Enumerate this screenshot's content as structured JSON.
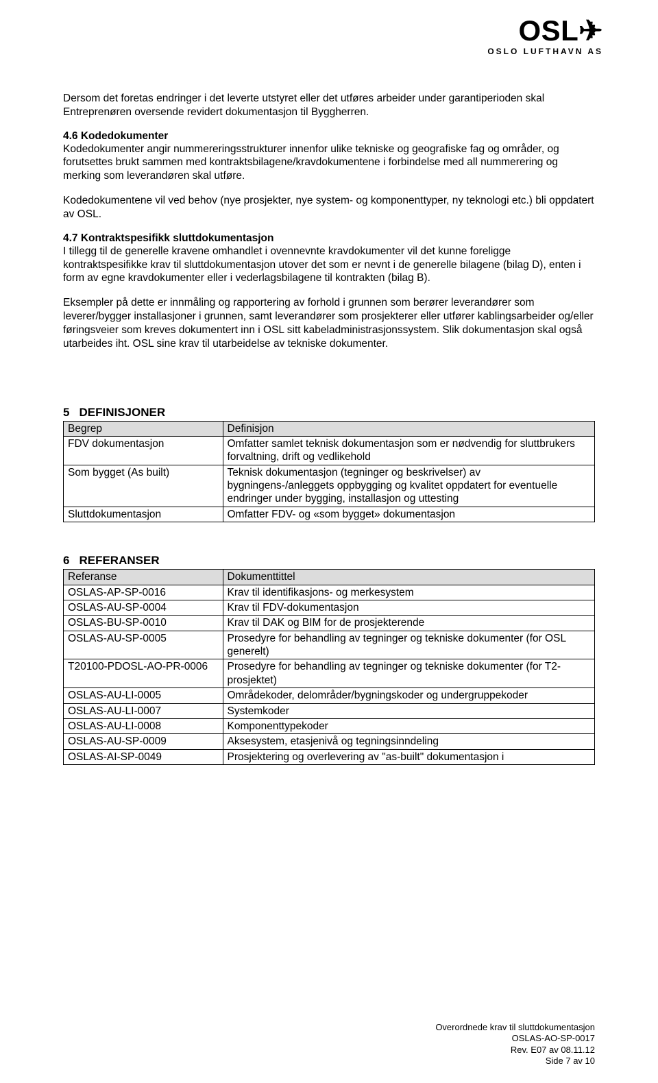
{
  "logo": {
    "main": "OSL✈",
    "sub": "OSLO LUFTHAVN AS"
  },
  "paragraphs": {
    "p1": "Dersom det foretas endringer i det leverte utstyret eller det utføres arbeider under garantiperioden skal Entreprenøren oversende revidert dokumentasjon til Byggherren.",
    "h46": "4.6   Kodedokumenter",
    "p2": "Kodedokumenter angir nummereringsstrukturer innenfor ulike tekniske og geografiske fag og områder, og forutsettes brukt sammen med kontraktsbilagene/kravdokumentene i forbindelse med all nummerering og merking som leverandøren skal utføre.",
    "p3": "Kodedokumentene vil ved behov (nye prosjekter, nye system- og komponenttyper, ny teknologi etc.) bli oppdatert av OSL.",
    "h47": "4.7   Kontraktspesifikk sluttdokumentasjon",
    "p4": "I tillegg til de generelle kravene omhandlet i ovennevnte kravdokumenter vil det kunne foreligge kontraktspesifikke krav til sluttdokumentasjon utover det som er nevnt i de generelle bilagene (bilag D), enten i form av egne kravdokumenter eller i vederlagsbilagene til kontrakten (bilag B).",
    "p5": "Eksempler på dette er innmåling og rapportering av forhold i grunnen som berører leverandører som leverer/bygger installasjoner i grunnen, samt leverandører som prosjekterer eller utfører kablingsarbeider og/eller føringsveier som kreves dokumentert inn i OSL sitt kabeladministrasjonssystem. Slik dokumentasjon skal også utarbeides iht. OSL sine krav til utarbeidelse av tekniske dokumenter."
  },
  "section5": {
    "num": "5",
    "label": "DEFINISJONER",
    "header": [
      "Begrep",
      "Definisjon"
    ],
    "rows": [
      [
        "FDV dokumentasjon",
        "Omfatter samlet teknisk dokumentasjon som er nødvendig for sluttbrukers forvaltning, drift og vedlikehold"
      ],
      [
        "Som bygget (As built)",
        "Teknisk dokumentasjon (tegninger og beskrivelser) av bygningens-/anleggets oppbygging og kvalitet oppdatert for eventuelle endringer under bygging, installasjon og uttesting"
      ],
      [
        "Sluttdokumentasjon",
        "Omfatter FDV- og «som bygget» dokumentasjon"
      ]
    ]
  },
  "section6": {
    "num": "6",
    "label": "REFERANSER",
    "header": [
      "Referanse",
      "Dokumenttittel"
    ],
    "rows": [
      [
        "OSLAS-AP-SP-0016",
        "Krav til identifikasjons- og merkesystem"
      ],
      [
        "OSLAS-AU-SP-0004",
        "Krav til FDV-dokumentasjon"
      ],
      [
        "OSLAS-BU-SP-0010",
        "Krav til DAK og BIM for de prosjekterende"
      ],
      [
        "OSLAS-AU-SP-0005",
        "Prosedyre for behandling av tegninger og tekniske dokumenter (for OSL generelt)"
      ],
      [
        "T20100-PDOSL-AO-PR-0006",
        "Prosedyre for behandling av tegninger og tekniske dokumenter (for T2-prosjektet)"
      ],
      [
        "OSLAS-AU-LI-0005",
        "Områdekoder, delområder/bygningskoder og undergruppekoder"
      ],
      [
        "OSLAS-AU-LI-0007",
        "Systemkoder"
      ],
      [
        "OSLAS-AU-LI-0008",
        "Komponenttypekoder"
      ],
      [
        "OSLAS-AU-SP-0009",
        "Aksesystem, etasjenivå og tegningsinndeling"
      ],
      [
        "OSLAS-AI-SP-0049",
        "Prosjektering og overlevering av \"as-built\" dokumentasjon i"
      ]
    ]
  },
  "footer": {
    "line1": "Overordnede krav til sluttdokumentasjon",
    "line2": "OSLAS-AO-SP-0017",
    "line3": "Rev. E07 av 08.11.12",
    "line4": "Side 7 av 10"
  }
}
